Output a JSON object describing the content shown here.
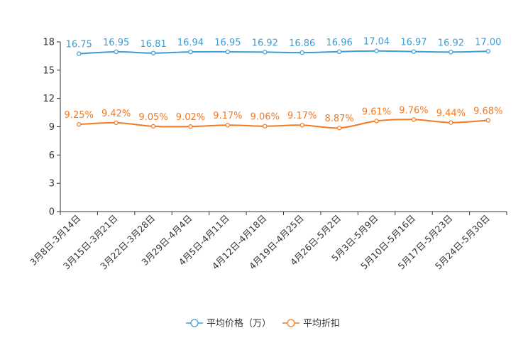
{
  "chart_data": {
    "type": "line",
    "title": "",
    "xlabel": "",
    "ylabel": "",
    "ylim": [
      0,
      18
    ],
    "yticks": [
      0,
      3,
      6,
      9,
      12,
      15,
      18
    ],
    "grid": false,
    "legend_position": "bottom-center",
    "categories": [
      "3月8日-3月14日",
      "3月15日-3月21日",
      "3月22日-3月28日",
      "3月29日-4月4日",
      "4月5日-4月11日",
      "4月12日-4月18日",
      "4月19日-4月25日",
      "4月26日-5月2日",
      "5月3日-5月9日",
      "5月10日-5月16日",
      "5月17日-5月23日",
      "5月24日-5月30日"
    ],
    "series": [
      {
        "name": "平均价格（万）",
        "color": "#3d9dd4",
        "values": [
          16.75,
          16.95,
          16.81,
          16.94,
          16.95,
          16.92,
          16.86,
          16.96,
          17.04,
          16.97,
          16.92,
          17.0
        ],
        "labels": [
          "16.75",
          "16.95",
          "16.81",
          "16.94",
          "16.95",
          "16.92",
          "16.86",
          "16.96",
          "17.04",
          "16.97",
          "16.92",
          "17.00"
        ]
      },
      {
        "name": "平均折扣",
        "color": "#f47920",
        "values": [
          9.25,
          9.42,
          9.05,
          9.02,
          9.17,
          9.06,
          9.17,
          8.87,
          9.61,
          9.76,
          9.44,
          9.68
        ],
        "labels": [
          "9.25%",
          "9.42%",
          "9.05%",
          "9.02%",
          "9.17%",
          "9.06%",
          "9.17%",
          "8.87%",
          "9.61%",
          "9.76%",
          "9.44%",
          "9.68%"
        ]
      }
    ]
  }
}
